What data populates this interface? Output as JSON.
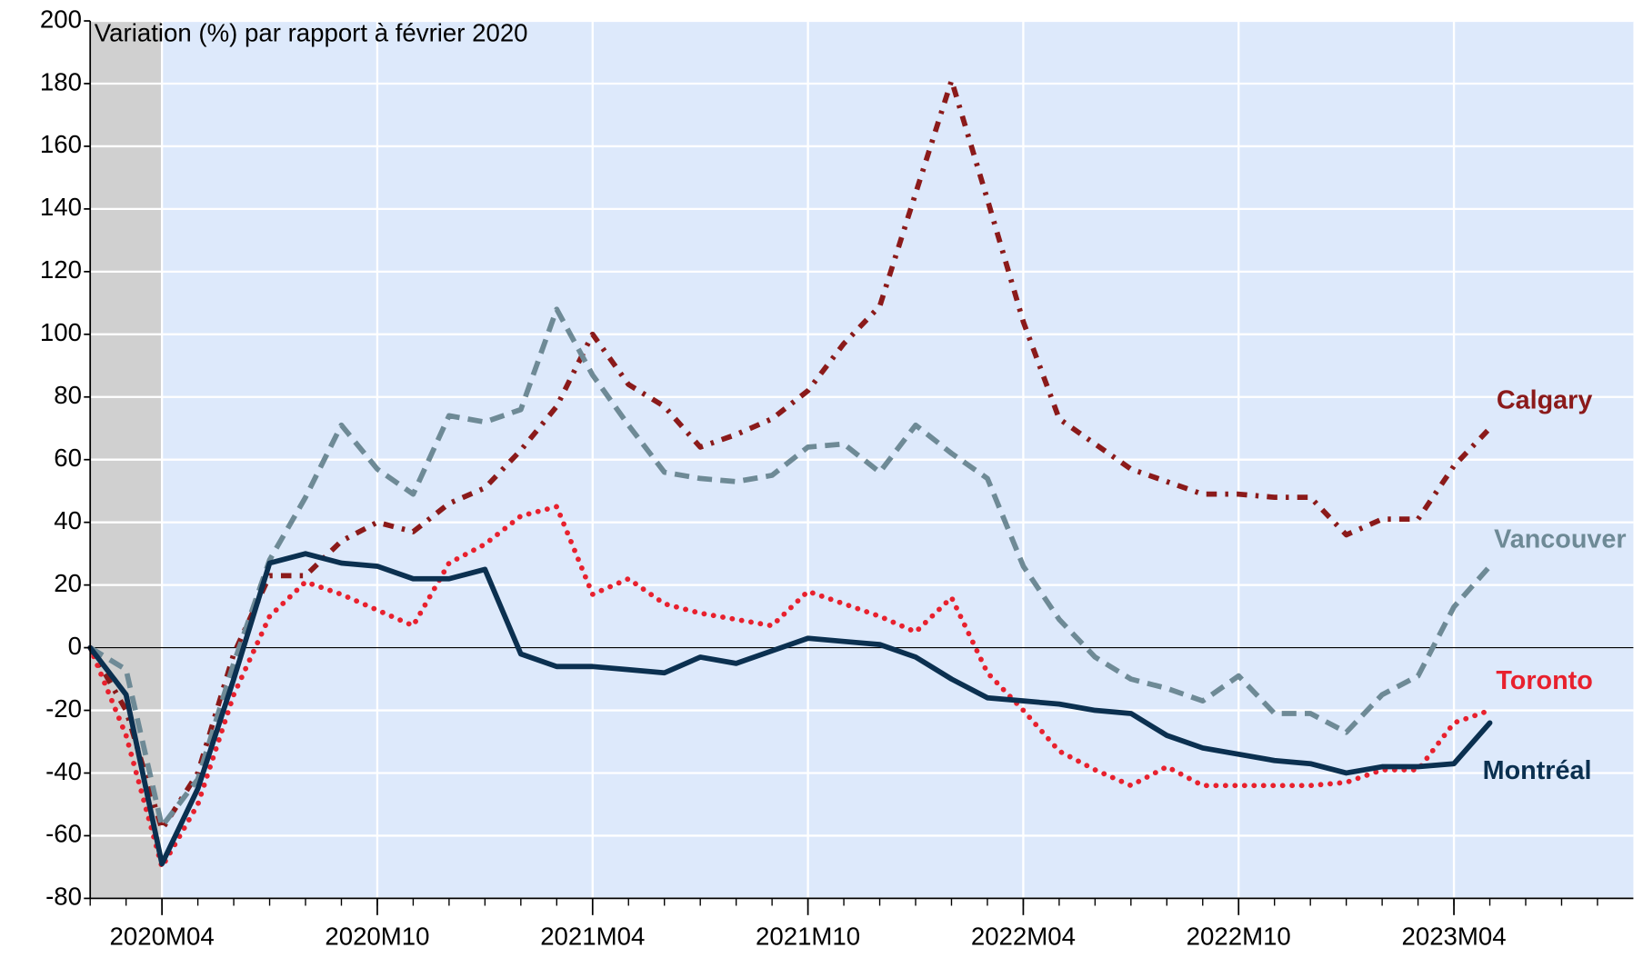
{
  "chart_data": {
    "type": "line",
    "y_label": "Variation (%) par rapport à février 2020",
    "categories": [
      null,
      null,
      "2020M04",
      null,
      null,
      null,
      null,
      null,
      "2020M10",
      null,
      null,
      null,
      null,
      null,
      "2021M04",
      null,
      null,
      null,
      null,
      null,
      "2021M10",
      null,
      null,
      null,
      null,
      null,
      "2022M04",
      null,
      null,
      null,
      null,
      null,
      "2022M10",
      null,
      null,
      null,
      null,
      null,
      "2023M04",
      null,
      null,
      null,
      null
    ],
    "series": [
      {
        "name": "Calgary",
        "color": "#8b1a1a",
        "values": [
          0,
          -20,
          -58,
          -40,
          -2,
          23,
          23,
          34,
          40,
          37,
          46,
          51,
          63,
          77,
          100,
          84,
          77,
          64,
          68,
          73,
          82,
          97,
          109,
          145,
          181,
          143,
          104,
          73,
          65,
          57,
          53,
          49,
          49,
          48,
          48,
          36,
          41,
          41,
          58,
          70,
          null,
          null,
          null
        ]
      },
      {
        "name": "Vancouver",
        "color": "#6e8a96",
        "values": [
          0,
          -7,
          -57,
          -42,
          -5,
          28,
          48,
          71,
          57,
          49,
          74,
          72,
          76,
          108,
          87,
          71,
          56,
          54,
          53,
          55,
          64,
          65,
          56,
          71,
          62,
          54,
          26,
          9,
          -3,
          -10,
          -13,
          -17,
          -9,
          -21,
          -21,
          -27,
          -15,
          -9,
          13,
          26,
          null,
          null,
          null
        ]
      },
      {
        "name": "Toronto",
        "color": "#e8212e",
        "values": [
          0,
          -28,
          -70,
          -50,
          -15,
          10,
          21,
          17,
          12,
          7,
          27,
          33,
          42,
          45,
          17,
          22,
          14,
          11,
          9,
          7,
          18,
          14,
          10,
          5,
          16,
          -8,
          -20,
          -33,
          -39,
          -44,
          -38,
          -44,
          -44,
          -44,
          -44,
          -43,
          -39,
          -39,
          -24,
          -20,
          null,
          null,
          null
        ]
      },
      {
        "name": "Montréal",
        "color": "#0b3050",
        "values": [
          0,
          -15,
          -69,
          -45,
          -10,
          27,
          30,
          27,
          26,
          22,
          22,
          25,
          -2,
          -6,
          -6,
          -7,
          -8,
          -3,
          -5,
          -1,
          3,
          2,
          1,
          -3,
          -10,
          -16,
          -17,
          -18,
          -20,
          -21,
          -28,
          -32,
          -34,
          -36,
          -37,
          -40,
          -38,
          -38,
          -37,
          -24,
          null,
          null,
          null
        ]
      }
    ],
    "ylim": [
      -80,
      200
    ],
    "yticks": [
      -80,
      -60,
      -40,
      -20,
      0,
      20,
      40,
      60,
      80,
      100,
      120,
      140,
      160,
      180,
      200
    ],
    "grid": true
  }
}
